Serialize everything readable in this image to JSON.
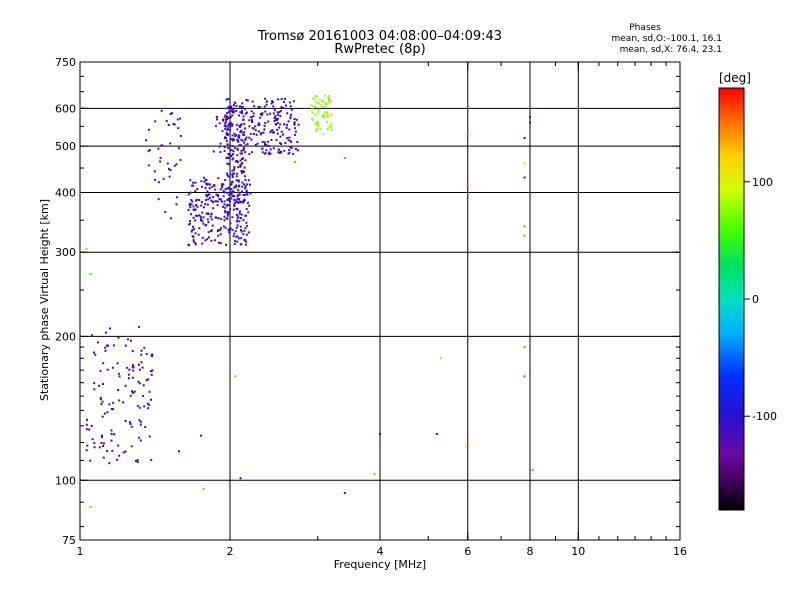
{
  "chart_data": {
    "type": "scatter",
    "title": "Tromsø 20161003 04:08:00–04:09:43",
    "subtitle": "RwPretec (8p)",
    "xlabel": "Frequency [MHz]",
    "ylabel": "Stationary phase Virtual Height [km]",
    "x_scale": "log",
    "y_scale": "log",
    "xlim": [
      1,
      16
    ],
    "ylim": [
      75,
      750
    ],
    "x_ticks": [
      1,
      2,
      4,
      6,
      8,
      10,
      16
    ],
    "x_tick_labels": [
      "1",
      "2",
      "4",
      "6",
      "8",
      "10",
      "16"
    ],
    "y_ticks": [
      75,
      100,
      200,
      300,
      400,
      500,
      600,
      750
    ],
    "y_tick_labels": [
      "75",
      "100",
      "200",
      "300",
      "400",
      "500",
      "600",
      "750"
    ],
    "x_gridlines": [
      2,
      4,
      6,
      8,
      10
    ],
    "y_gridlines": [
      100,
      200,
      300,
      400,
      500,
      600
    ],
    "grid": true,
    "phases_header": "Phases",
    "stats": [
      "mean, sd,O:–100.1, 16.1",
      "mean, sd,X:  76.4, 23.1"
    ],
    "colorbar": {
      "label": "[deg]",
      "range": [
        -180,
        180
      ],
      "tick_values": [
        100,
        0,
        -100
      ],
      "tick_labels": [
        "100",
        "0",
        "-100"
      ]
    },
    "point_groups": [
      {
        "name": "low_region_cusp",
        "x": [
          1.03,
          1.4
        ],
        "y": [
          108,
          210
        ],
        "phase": [
          -125,
          -95
        ],
        "count": 130
      },
      {
        "name": "F1_blob",
        "x": [
          1.65,
          2.2
        ],
        "y": [
          310,
          430
        ],
        "phase": [
          -120,
          -95
        ],
        "count": 260
      },
      {
        "name": "F2_rising",
        "x": [
          1.95,
          2.15
        ],
        "y": [
          380,
          620
        ],
        "phase": [
          -120,
          -95
        ],
        "count": 160
      },
      {
        "name": "F2_top",
        "x": [
          1.95,
          2.75
        ],
        "y": [
          480,
          630
        ],
        "phase": [
          -120,
          -90
        ],
        "count": 160
      },
      {
        "name": "arc_purple",
        "x": [
          1.85,
          2.75
        ],
        "y": [
          480,
          580
        ],
        "phase": [
          -150,
          -130
        ],
        "count": 70
      },
      {
        "name": "green_cluster",
        "x": [
          2.9,
          3.2
        ],
        "y": [
          530,
          640
        ],
        "phase": [
          65,
          90
        ],
        "count": 60
      },
      {
        "name": "left_cluster",
        "x": [
          1.35,
          1.6
        ],
        "y": [
          350,
          600
        ],
        "phase": [
          -120,
          -95
        ],
        "count": 40
      }
    ],
    "points": [
      {
        "x": 1.03,
        "y": 305,
        "phase": 60
      },
      {
        "x": 1.05,
        "y": 270,
        "phase": 45
      },
      {
        "x": 1.05,
        "y": 88,
        "phase": 45
      },
      {
        "x": 1.58,
        "y": 115,
        "phase": -100
      },
      {
        "x": 1.75,
        "y": 124,
        "phase": -105
      },
      {
        "x": 1.77,
        "y": 96,
        "phase": 140
      },
      {
        "x": 2.05,
        "y": 165,
        "phase": 140
      },
      {
        "x": 2.1,
        "y": 101,
        "phase": -95
      },
      {
        "x": 3.4,
        "y": 94,
        "phase": -110
      },
      {
        "x": 3.9,
        "y": 103,
        "phase": 140
      },
      {
        "x": 4.0,
        "y": 125,
        "phase": -150
      },
      {
        "x": 2.7,
        "y": 463,
        "phase": 145
      },
      {
        "x": 3.4,
        "y": 472,
        "phase": 150
      },
      {
        "x": 5.2,
        "y": 125,
        "phase": -105
      },
      {
        "x": 5.3,
        "y": 180,
        "phase": 130
      },
      {
        "x": 6.0,
        "y": 530,
        "phase": 160
      },
      {
        "x": 6.0,
        "y": 415,
        "phase": 160
      },
      {
        "x": 6.0,
        "y": 118,
        "phase": 165
      },
      {
        "x": 7.8,
        "y": 520,
        "phase": -90
      },
      {
        "x": 7.8,
        "y": 460,
        "phase": 80
      },
      {
        "x": 7.8,
        "y": 430,
        "phase": -100
      },
      {
        "x": 7.8,
        "y": 340,
        "phase": 150
      },
      {
        "x": 7.8,
        "y": 325,
        "phase": 150
      },
      {
        "x": 7.8,
        "y": 190,
        "phase": 150
      },
      {
        "x": 7.8,
        "y": 165,
        "phase": 160
      },
      {
        "x": 8.0,
        "y": 575,
        "phase": -90
      },
      {
        "x": 8.0,
        "y": 560,
        "phase": -100
      },
      {
        "x": 8.1,
        "y": 105,
        "phase": 150
      }
    ]
  }
}
